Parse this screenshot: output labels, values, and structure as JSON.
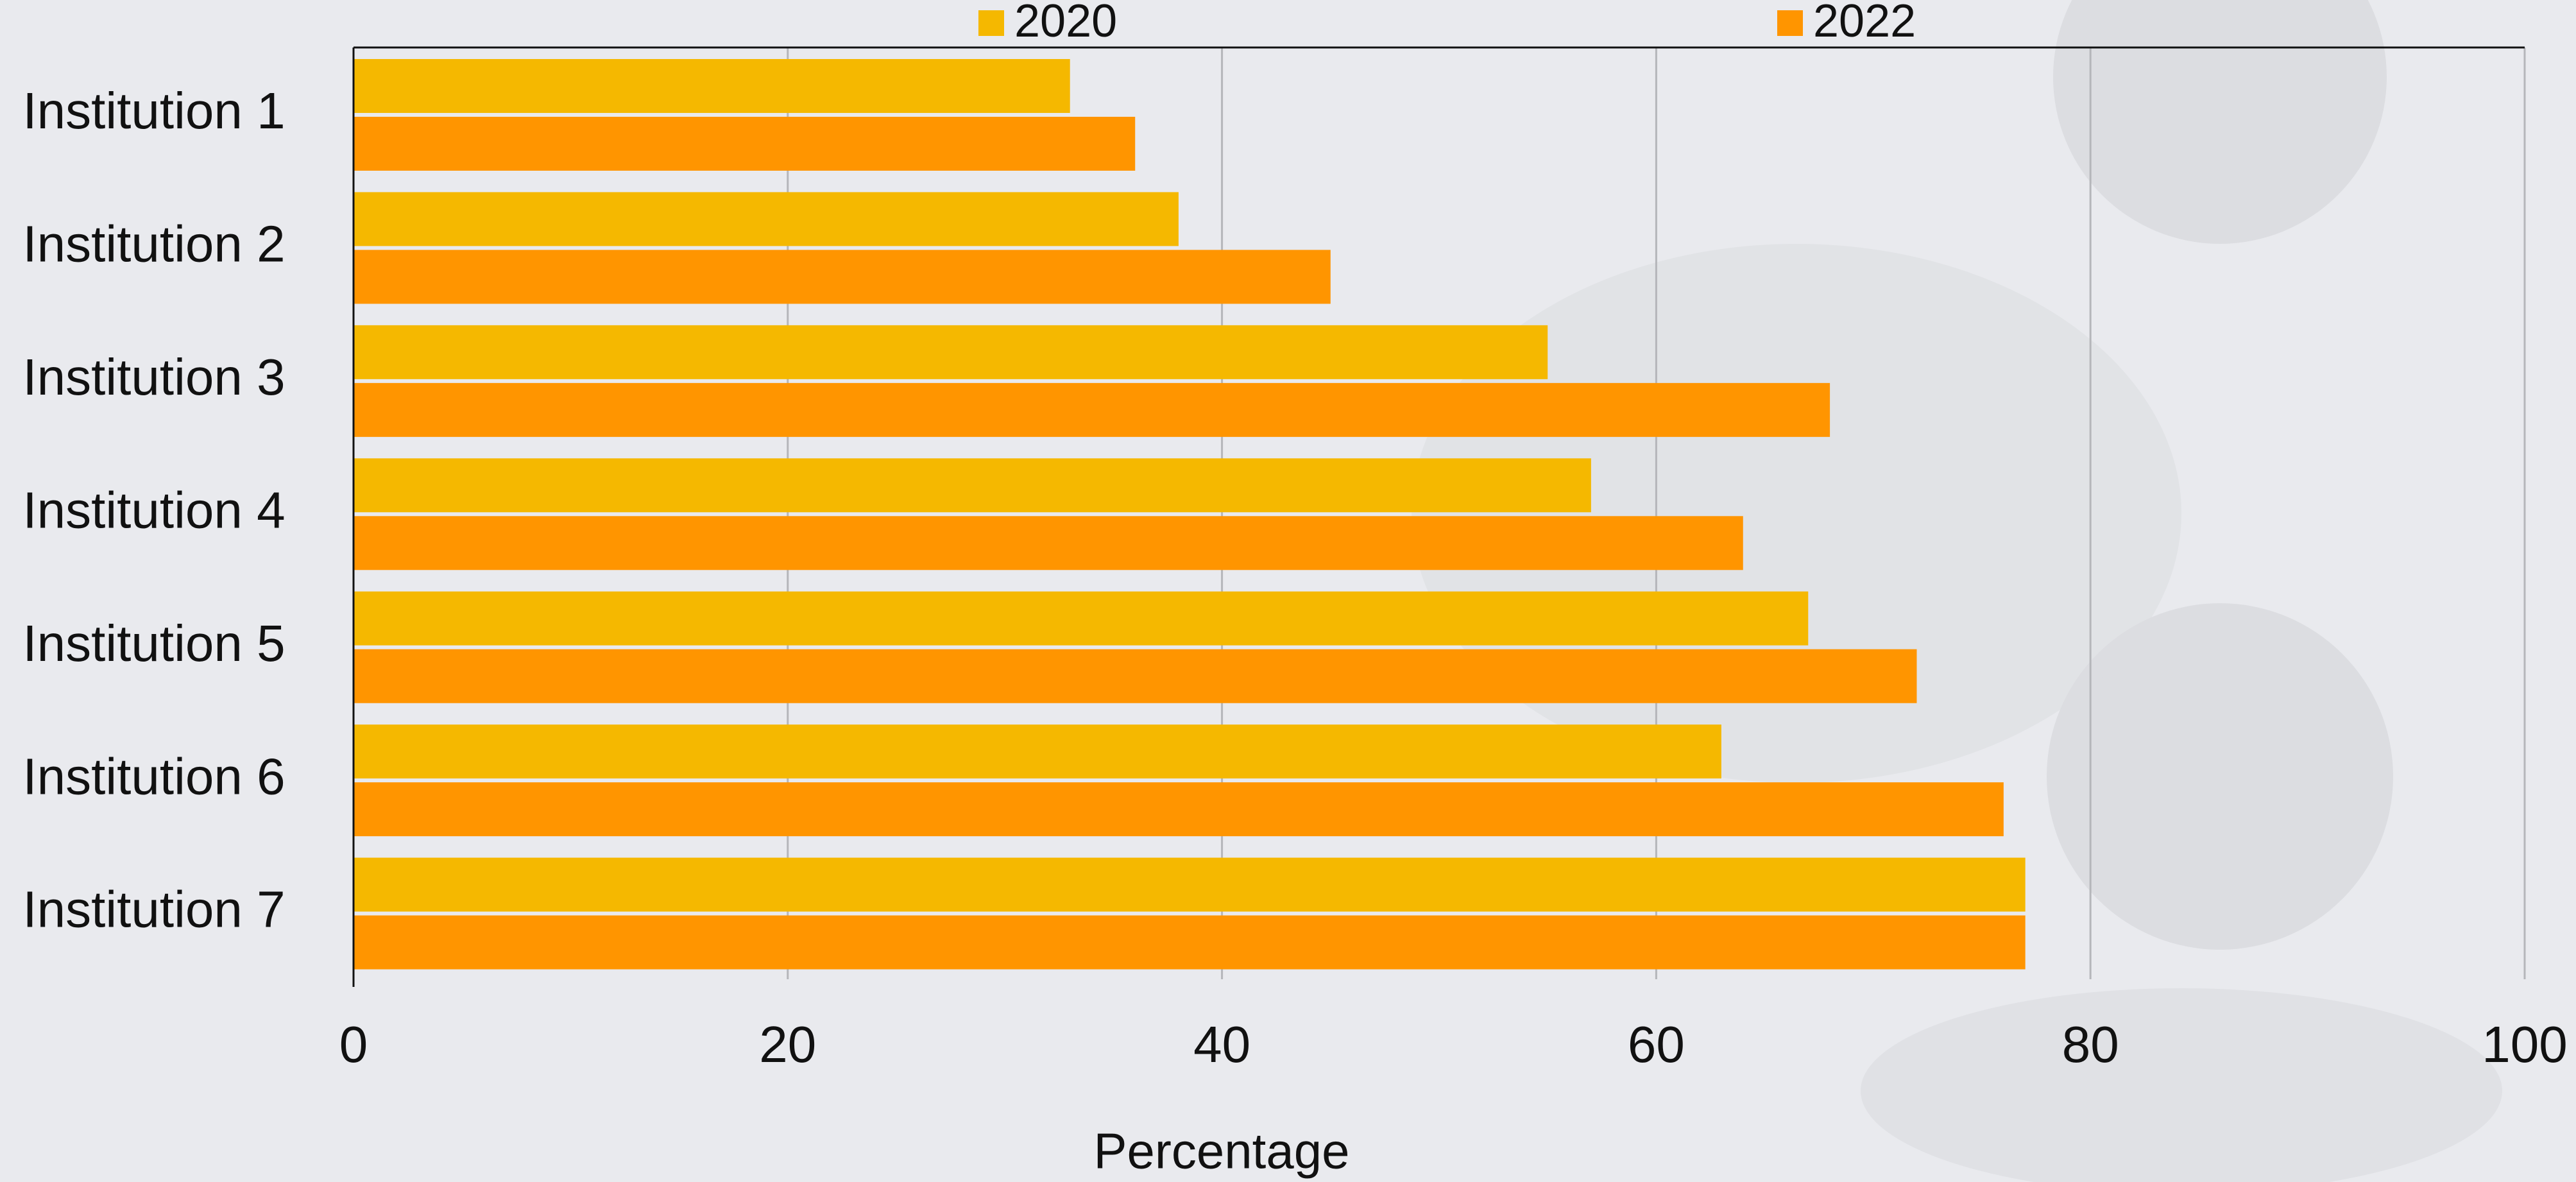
{
  "chart_data": {
    "type": "bar",
    "orientation": "horizontal",
    "x_label": "Percentage",
    "categories": [
      "Institution 1",
      "Institution 2",
      "Institution 3",
      "Institution 4",
      "Institution 5",
      "Institution 6",
      "Institution 7"
    ],
    "series": [
      {
        "name": "2020",
        "color": "#f5b800",
        "values": [
          33,
          38,
          55,
          57,
          67,
          63,
          77
        ]
      },
      {
        "name": "2022",
        "color": "#ff9500",
        "values": [
          36,
          45,
          68,
          64,
          72,
          76,
          77
        ]
      }
    ],
    "xlim": [
      0,
      100
    ],
    "xticks": [
      0,
      20,
      40,
      60,
      80,
      100
    ],
    "grid": true,
    "legend": "top"
  }
}
